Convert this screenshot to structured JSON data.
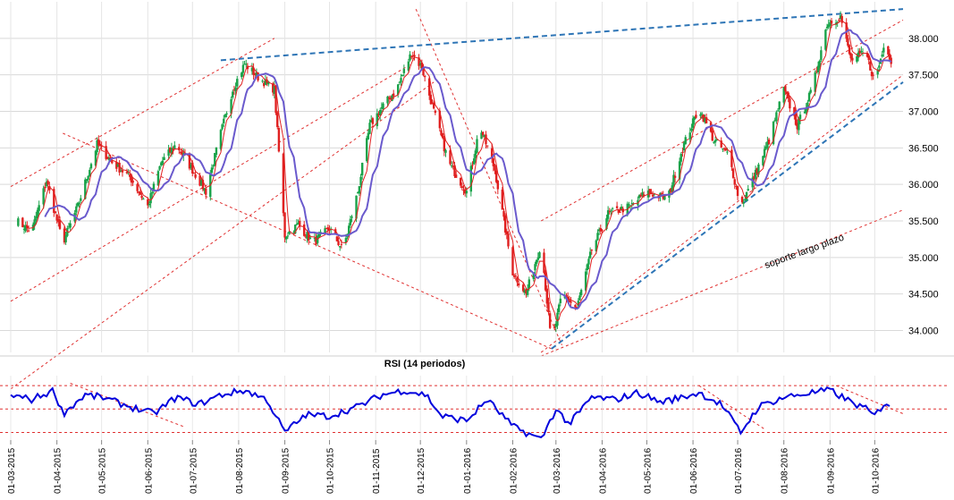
{
  "chart_data": [
    {
      "type": "candlestick",
      "title": "",
      "ylim": [
        33700,
        38500
      ],
      "yticks": [
        34000,
        34500,
        35000,
        35500,
        36000,
        36500,
        37000,
        37500,
        38000
      ],
      "ytick_labels": [
        "34.000",
        "34.500",
        "35.000",
        "35.500",
        "36.000",
        "36.500",
        "37.000",
        "37.500",
        "38.000"
      ],
      "grid": true,
      "colors": {
        "up": "#1aa34a",
        "down": "#e02020",
        "ma_fast": "#e02020",
        "ma_slow": "#6a5acd",
        "trend_red": "#e03030",
        "trend_blue": "#2e75b6"
      },
      "price_points": [
        [
          "2015-03-05",
          35500
        ],
        [
          "2015-03-15",
          35350
        ],
        [
          "2015-03-25",
          36050
        ],
        [
          "2015-04-05",
          35200
        ],
        [
          "2015-04-15",
          35700
        ],
        [
          "2015-04-28",
          36550
        ],
        [
          "2015-05-08",
          36300
        ],
        [
          "2015-05-20",
          36100
        ],
        [
          "2015-06-01",
          35700
        ],
        [
          "2015-06-10",
          36300
        ],
        [
          "2015-06-20",
          36550
        ],
        [
          "2015-07-01",
          36200
        ],
        [
          "2015-07-10",
          35900
        ],
        [
          "2015-07-20",
          36700
        ],
        [
          "2015-07-28",
          37300
        ],
        [
          "2015-08-05",
          37650
        ],
        [
          "2015-08-15",
          37450
        ],
        [
          "2015-08-25",
          37300
        ],
        [
          "2015-09-01",
          35300
        ],
        [
          "2015-09-10",
          35450
        ],
        [
          "2015-09-20",
          35200
        ],
        [
          "2015-10-01",
          35400
        ],
        [
          "2015-10-10",
          35100
        ],
        [
          "2015-10-20",
          35900
        ],
        [
          "2015-10-28",
          36800
        ],
        [
          "2015-11-05",
          37050
        ],
        [
          "2015-11-15",
          37300
        ],
        [
          "2015-11-25",
          37800
        ],
        [
          "2015-12-02",
          37600
        ],
        [
          "2015-12-10",
          37000
        ],
        [
          "2015-12-20",
          36300
        ],
        [
          "2016-01-01",
          35900
        ],
        [
          "2016-01-10",
          36800
        ],
        [
          "2016-01-20",
          36200
        ],
        [
          "2016-02-01",
          34800
        ],
        [
          "2016-02-10",
          34500
        ],
        [
          "2016-02-20",
          35200
        ],
        [
          "2016-02-27",
          33800
        ],
        [
          "2016-03-05",
          34500
        ],
        [
          "2016-03-15",
          34300
        ],
        [
          "2016-03-25",
          35100
        ],
        [
          "2016-04-05",
          35600
        ],
        [
          "2016-04-20",
          35700
        ],
        [
          "2016-05-01",
          35900
        ],
        [
          "2016-05-15",
          35800
        ],
        [
          "2016-05-25",
          36500
        ],
        [
          "2016-06-05",
          37050
        ],
        [
          "2016-06-15",
          36600
        ],
        [
          "2016-06-25",
          36400
        ],
        [
          "2016-07-03",
          35700
        ],
        [
          "2016-07-12",
          36100
        ],
        [
          "2016-07-22",
          36600
        ],
        [
          "2016-08-01",
          37300
        ],
        [
          "2016-08-10",
          36800
        ],
        [
          "2016-08-20",
          37300
        ],
        [
          "2016-08-30",
          38200
        ],
        [
          "2016-09-08",
          38300
        ],
        [
          "2016-09-15",
          37700
        ],
        [
          "2016-09-25",
          37800
        ],
        [
          "2016-10-01",
          37400
        ],
        [
          "2016-10-08",
          37950
        ],
        [
          "2016-10-12",
          37700
        ]
      ],
      "annotations": [
        {
          "text": "soporte largo plazo",
          "x": "2016-07-20",
          "y": 34850,
          "rotation": -20
        }
      ]
    },
    {
      "type": "line",
      "title": "RSI (14 periodos)",
      "ylim": [
        25,
        80
      ],
      "reference_lines": [
        70,
        50,
        30
      ],
      "x_tick_labels": [
        "01-03-2015",
        "01-04-2015",
        "01-05-2015",
        "01-06-2015",
        "01-07-2015",
        "01-08-2015",
        "01-09-2015",
        "01-10-2015",
        "01-11-2015",
        "01-12-2015",
        "01-01-2016",
        "01-02-2016",
        "01-03-2016",
        "01-04-2016",
        "01-05-2016",
        "01-06-2016",
        "01-07-2016",
        "01-08-2016",
        "01-09-2016",
        "01-10-2016"
      ],
      "rsi_points": [
        [
          "2015-03-01",
          62
        ],
        [
          "2015-03-15",
          58
        ],
        [
          "2015-03-30",
          66
        ],
        [
          "2015-04-05",
          46
        ],
        [
          "2015-04-20",
          62
        ],
        [
          "2015-05-01",
          60
        ],
        [
          "2015-05-20",
          52
        ],
        [
          "2015-06-05",
          46
        ],
        [
          "2015-06-20",
          60
        ],
        [
          "2015-07-05",
          54
        ],
        [
          "2015-07-20",
          62
        ],
        [
          "2015-08-05",
          66
        ],
        [
          "2015-08-20",
          58
        ],
        [
          "2015-09-01",
          30
        ],
        [
          "2015-09-15",
          45
        ],
        [
          "2015-10-01",
          44
        ],
        [
          "2015-10-20",
          52
        ],
        [
          "2015-11-05",
          62
        ],
        [
          "2015-11-20",
          66
        ],
        [
          "2015-12-05",
          62
        ],
        [
          "2015-12-15",
          44
        ],
        [
          "2016-01-01",
          40
        ],
        [
          "2016-01-15",
          58
        ],
        [
          "2016-02-01",
          35
        ],
        [
          "2016-02-20",
          24
        ],
        [
          "2016-03-01",
          50
        ],
        [
          "2016-03-10",
          37
        ],
        [
          "2016-03-25",
          60
        ],
        [
          "2016-04-10",
          58
        ],
        [
          "2016-04-25",
          64
        ],
        [
          "2016-05-10",
          56
        ],
        [
          "2016-05-25",
          60
        ],
        [
          "2016-06-05",
          64
        ],
        [
          "2016-06-20",
          54
        ],
        [
          "2016-07-03",
          30
        ],
        [
          "2016-07-15",
          52
        ],
        [
          "2016-08-01",
          60
        ],
        [
          "2016-08-20",
          64
        ],
        [
          "2016-09-01",
          66
        ],
        [
          "2016-09-15",
          56
        ],
        [
          "2016-09-25",
          50
        ],
        [
          "2016-10-01",
          44
        ],
        [
          "2016-10-08",
          56
        ],
        [
          "2016-10-12",
          53
        ]
      ]
    }
  ]
}
